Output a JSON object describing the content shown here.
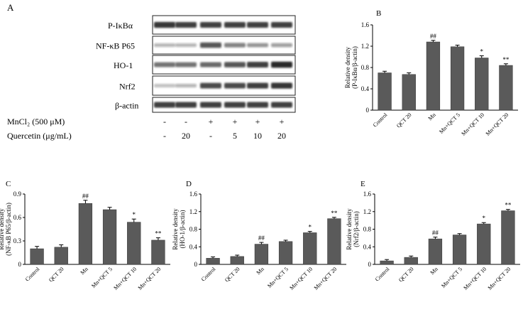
{
  "panel_a": {
    "letter": "A",
    "blot_labels": [
      "P-IκBα",
      "NF-κB P65",
      "HO-1",
      "Nrf2",
      "β-actin"
    ],
    "band_intensity": [
      [
        0.85,
        0.8,
        0.8,
        0.8,
        0.8,
        0.8
      ],
      [
        0.2,
        0.2,
        0.7,
        0.45,
        0.35,
        0.3
      ],
      [
        0.55,
        0.55,
        0.6,
        0.7,
        0.8,
        0.9
      ],
      [
        0.15,
        0.2,
        0.75,
        0.75,
        0.8,
        0.85
      ],
      [
        0.8,
        0.8,
        0.8,
        0.8,
        0.8,
        0.8
      ]
    ],
    "treatment_rows": [
      {
        "label": "MnCl₂ (500 μM)",
        "values": [
          "-",
          "-",
          "+",
          "+",
          "+",
          "+"
        ]
      },
      {
        "label": "Quercetin (μg/mL)",
        "values": [
          "-",
          "20",
          "-",
          "5",
          "10",
          "20"
        ]
      }
    ]
  },
  "chart_data": [
    {
      "panel": "B",
      "type": "bar",
      "categories": [
        "Control",
        "QCT 20",
        "Mn",
        "Mn+QCT 5",
        "Mn+QCT 10",
        "Mn+QCT 20"
      ],
      "values": [
        0.7,
        0.67,
        1.28,
        1.19,
        0.98,
        0.84
      ],
      "errors": [
        0.03,
        0.03,
        0.03,
        0.03,
        0.04,
        0.03
      ],
      "annotations": [
        "",
        "",
        "##",
        "",
        "*",
        "**"
      ],
      "ylabel_lines": [
        "Relative density",
        "(P-IκBα/β-actin)"
      ],
      "ylim": [
        0,
        1.6
      ],
      "yticks": [
        0,
        0.4,
        0.8,
        1.2,
        1.6
      ],
      "ytick_labels": [
        "0",
        "0.4",
        "0.8",
        "1.2",
        "1.6"
      ]
    },
    {
      "panel": "C",
      "type": "bar",
      "categories": [
        "Control",
        "QCT 20",
        "Mn",
        "Mn+QCT 5",
        "Mn+QCT 10",
        "Mn+QCT 20"
      ],
      "values": [
        0.2,
        0.22,
        0.78,
        0.7,
        0.54,
        0.31
      ],
      "errors": [
        0.03,
        0.03,
        0.04,
        0.03,
        0.04,
        0.03
      ],
      "annotations": [
        "",
        "",
        "##",
        "",
        "*",
        "**"
      ],
      "ylabel_lines": [
        "Relative density",
        "(NF-κB P65/β-actin)"
      ],
      "ylim": [
        0,
        0.9
      ],
      "yticks": [
        0,
        0.3,
        0.6,
        0.9
      ],
      "ytick_labels": [
        "0",
        "0.3",
        "0.6",
        "0.9"
      ]
    },
    {
      "panel": "D",
      "type": "bar",
      "categories": [
        "Control",
        "QCT 20",
        "Mn",
        "Mn+QCT 5",
        "Mn+QCT 10",
        "Mn+QCT 20"
      ],
      "values": [
        0.14,
        0.18,
        0.46,
        0.52,
        0.72,
        1.04
      ],
      "errors": [
        0.03,
        0.03,
        0.04,
        0.03,
        0.03,
        0.03
      ],
      "annotations": [
        "",
        "",
        "##",
        "",
        "*",
        "**"
      ],
      "ylabel_lines": [
        "Relative density",
        "(HO-1/β-actin)"
      ],
      "ylim": [
        0,
        1.6
      ],
      "yticks": [
        0,
        0.4,
        0.8,
        1.2,
        1.6
      ],
      "ytick_labels": [
        "0",
        "0.4",
        "0.8",
        "1.2",
        "1.6"
      ]
    },
    {
      "panel": "E",
      "type": "bar",
      "categories": [
        "Control",
        "QCT 20",
        "Mn",
        "Mn+QCT 5",
        "Mn+QCT 10",
        "Mn+QCT 20"
      ],
      "values": [
        0.08,
        0.16,
        0.58,
        0.67,
        0.92,
        1.22
      ],
      "errors": [
        0.03,
        0.03,
        0.04,
        0.03,
        0.03,
        0.03
      ],
      "annotations": [
        "",
        "",
        "##",
        "",
        "*",
        "**"
      ],
      "ylabel_lines": [
        "Relative density",
        "(Nrf2/β-actin)"
      ],
      "ylim": [
        0,
        1.6
      ],
      "yticks": [
        0,
        0.4,
        0.8,
        1.2,
        1.6
      ],
      "ytick_labels": [
        "0",
        "0.4",
        "0.8",
        "1.2",
        "1.6"
      ]
    }
  ],
  "colors": {
    "bar": "#5a5a5a",
    "axis": "#000000",
    "band": "#1a1a1a"
  }
}
